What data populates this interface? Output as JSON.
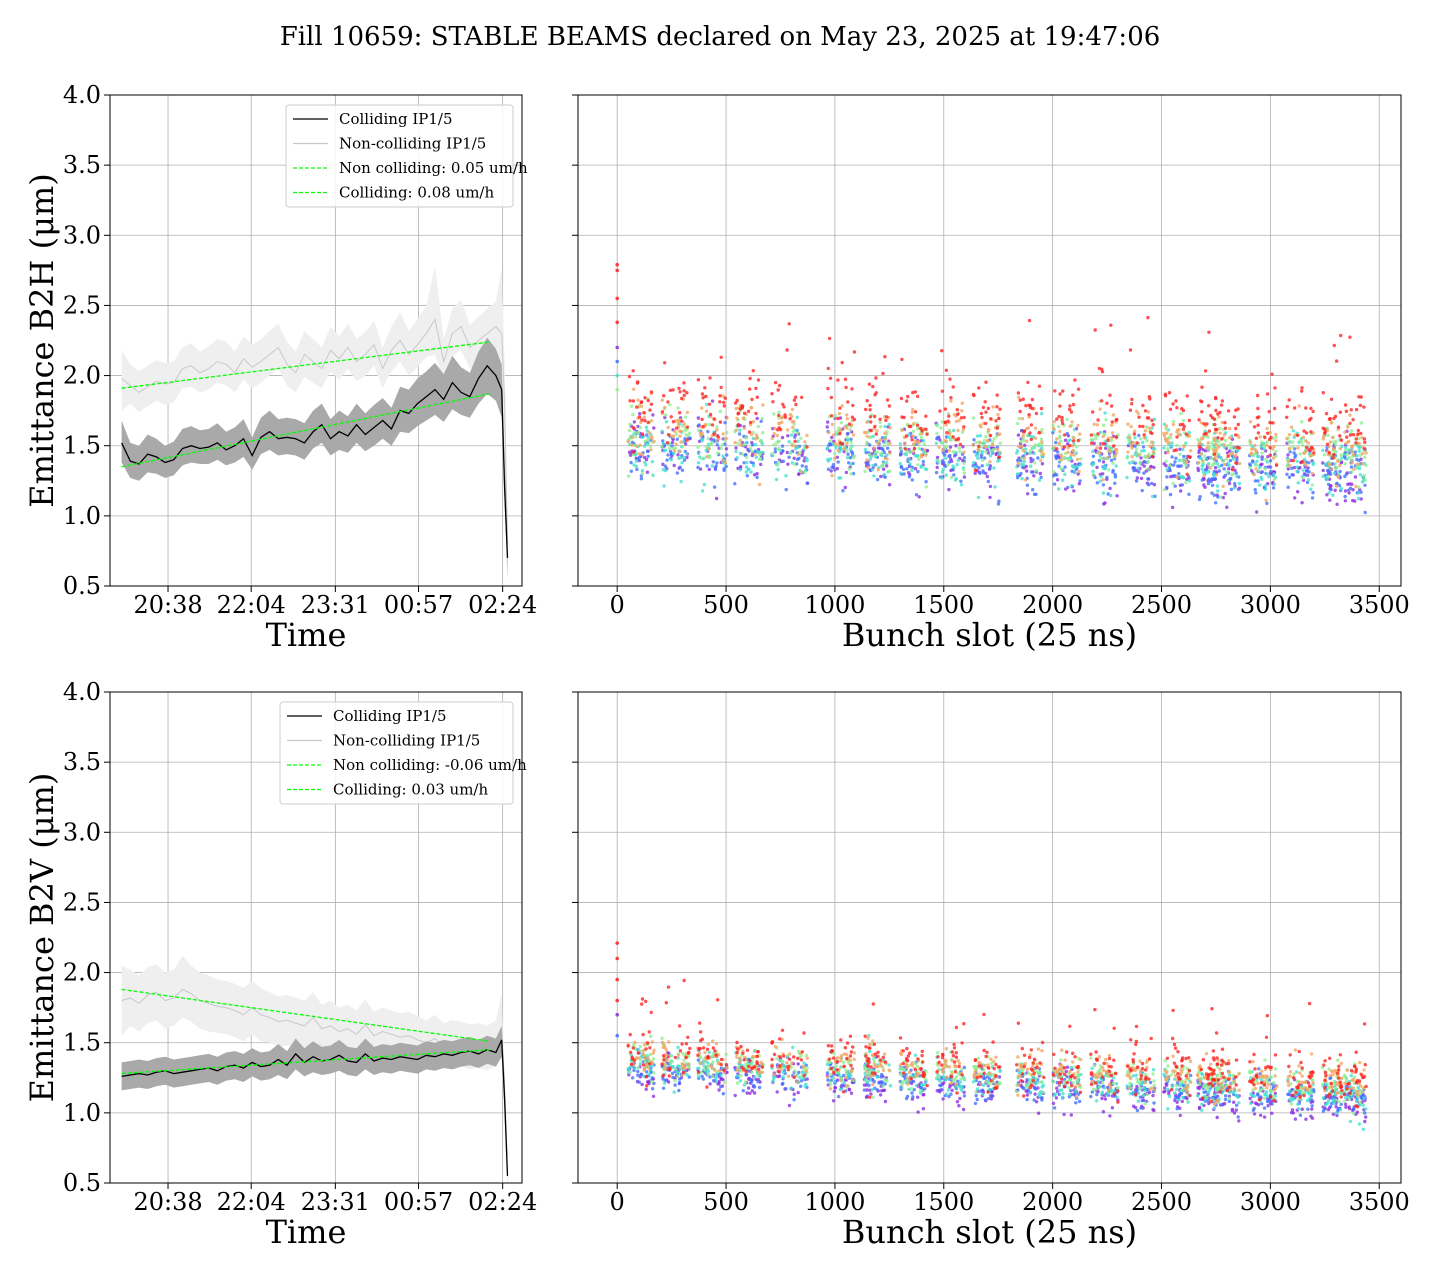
{
  "figure": {
    "title": "Fill 10659: STABLE BEAMS declared on May 23, 2025 at 19:47:06"
  },
  "chart_data": [
    {
      "type": "line",
      "panel": "top-left",
      "xlabel": "Time",
      "ylabel": "Emittance B2H (μm)",
      "ylim": [
        0.5,
        4.0
      ],
      "yticks": [
        "0.5",
        "1.0",
        "1.5",
        "2.0",
        "2.5",
        "3.0",
        "3.5",
        "4.0"
      ],
      "xticks": [
        "20:38",
        "22:04",
        "23:31",
        "00:57",
        "02:24"
      ],
      "grid": true,
      "legend_position": "upper-center",
      "legend": [
        "Colliding IP1/5",
        "Non-colliding IP1/5",
        "Non colliding: 0.05 um/h",
        "Colliding: 0.08 um/h"
      ],
      "colors": {
        "colliding": "#000000",
        "colliding_band": "#a9a9a9",
        "noncolliding": "#c8c8c8",
        "noncolliding_band": "#efefef",
        "fit": "#00ff00"
      },
      "x_hours_from_2038": [
        -0.8,
        -0.65,
        -0.5,
        -0.35,
        -0.2,
        -0.05,
        0.1,
        0.25,
        0.4,
        0.55,
        0.7,
        0.85,
        1.0,
        1.15,
        1.3,
        1.45,
        1.6,
        1.75,
        1.9,
        2.05,
        2.2,
        2.35,
        2.5,
        2.65,
        2.8,
        2.95,
        3.1,
        3.25,
        3.4,
        3.55,
        3.7,
        3.85,
        4.0,
        4.15,
        4.3,
        4.45,
        4.6,
        4.75,
        4.9,
        5.05,
        5.2,
        5.35,
        5.5,
        5.65,
        5.75,
        5.8,
        5.85
      ],
      "series": [
        {
          "name": "Colliding IP1/5",
          "values": [
            1.52,
            1.39,
            1.37,
            1.44,
            1.42,
            1.38,
            1.4,
            1.48,
            1.5,
            1.48,
            1.49,
            1.52,
            1.47,
            1.5,
            1.55,
            1.43,
            1.56,
            1.6,
            1.55,
            1.56,
            1.55,
            1.52,
            1.6,
            1.65,
            1.55,
            1.6,
            1.57,
            1.65,
            1.58,
            1.63,
            1.68,
            1.62,
            1.75,
            1.73,
            1.8,
            1.85,
            1.9,
            1.83,
            1.95,
            1.88,
            1.85,
            1.98,
            2.07,
            2.0,
            1.9,
            1.2,
            0.7
          ],
          "band_low": [
            1.38,
            1.27,
            1.25,
            1.31,
            1.3,
            1.27,
            1.29,
            1.36,
            1.38,
            1.37,
            1.37,
            1.4,
            1.36,
            1.38,
            1.42,
            1.33,
            1.44,
            1.47,
            1.43,
            1.44,
            1.43,
            1.4,
            1.48,
            1.52,
            1.43,
            1.47,
            1.45,
            1.52,
            1.46,
            1.5,
            1.55,
            1.5,
            1.6,
            1.59,
            1.64,
            1.68,
            1.72,
            1.67,
            1.76,
            1.72,
            1.7,
            1.8,
            1.87,
            1.82,
            1.7,
            1.1,
            0.55
          ],
          "band_high": [
            1.68,
            1.52,
            1.5,
            1.58,
            1.55,
            1.5,
            1.53,
            1.62,
            1.64,
            1.61,
            1.62,
            1.66,
            1.6,
            1.63,
            1.69,
            1.56,
            1.7,
            1.75,
            1.69,
            1.7,
            1.69,
            1.66,
            1.75,
            1.8,
            1.69,
            1.75,
            1.71,
            1.8,
            1.73,
            1.79,
            1.84,
            1.77,
            1.92,
            1.9,
            1.98,
            2.03,
            2.09,
            2.01,
            2.14,
            2.06,
            2.02,
            2.17,
            2.27,
            2.19,
            2.08,
            1.4,
            0.9
          ]
        },
        {
          "name": "Non-colliding IP1/5",
          "values": [
            1.98,
            1.93,
            1.88,
            1.92,
            1.96,
            1.94,
            1.95,
            2.05,
            2.07,
            2.02,
            2.05,
            2.1,
            2.08,
            2.02,
            2.12,
            2.06,
            2.1,
            2.15,
            2.2,
            2.08,
            2.02,
            2.15,
            2.1,
            2.05,
            2.18,
            2.12,
            2.2,
            2.1,
            2.15,
            2.22,
            2.05,
            2.18,
            2.25,
            2.15,
            2.22,
            2.3,
            2.4,
            2.1,
            2.3,
            2.35,
            2.2,
            2.25,
            2.3,
            2.35,
            2.3,
            1.8,
            0.8
          ],
          "band_low": [
            1.75,
            1.8,
            1.74,
            1.78,
            1.82,
            1.79,
            1.81,
            1.91,
            1.92,
            1.88,
            1.9,
            1.95,
            1.93,
            1.88,
            1.97,
            1.91,
            1.95,
            2.0,
            2.05,
            1.93,
            1.88,
            1.99,
            1.95,
            1.91,
            2.03,
            1.97,
            2.05,
            1.96,
            2.0,
            2.07,
            1.91,
            2.03,
            2.1,
            2.0,
            2.06,
            2.13,
            2.15,
            1.96,
            2.14,
            2.18,
            2.05,
            2.09,
            2.14,
            2.18,
            2.1,
            1.5,
            0.6
          ],
          "band_high": [
            2.18,
            2.08,
            2.03,
            2.07,
            2.11,
            2.09,
            2.1,
            2.2,
            2.23,
            2.17,
            2.21,
            2.26,
            2.24,
            2.17,
            2.28,
            2.22,
            2.26,
            2.32,
            2.37,
            2.24,
            2.17,
            2.32,
            2.26,
            2.2,
            2.35,
            2.28,
            2.37,
            2.26,
            2.31,
            2.39,
            2.2,
            2.35,
            2.45,
            2.32,
            2.4,
            2.5,
            2.78,
            2.26,
            2.48,
            2.54,
            2.36,
            2.42,
            2.48,
            2.53,
            2.76,
            2.1,
            1.0
          ]
        },
        {
          "name": "Non colliding: 0.05 um/h",
          "fit": true,
          "x": [
            -0.8,
            5.55
          ],
          "values": [
            1.91,
            2.24
          ]
        },
        {
          "name": "Colliding: 0.08 um/h",
          "fit": true,
          "x": [
            -0.8,
            5.55
          ],
          "values": [
            1.35,
            1.87
          ]
        }
      ]
    },
    {
      "type": "scatter",
      "panel": "top-right",
      "xlabel": "Bunch slot (25 ns)",
      "ylim": [
        0.5,
        4.0
      ],
      "xlim": [
        -180,
        3600
      ],
      "xticks": [
        "0",
        "500",
        "1000",
        "1500",
        "2000",
        "2500",
        "3000",
        "3500"
      ],
      "grid": true,
      "color_scale": "rainbow (purple = earliest, red = latest)",
      "bunch_trains": [
        [
          50,
          170
        ],
        [
          205,
          335
        ],
        [
          370,
          505
        ],
        [
          540,
          670
        ],
        [
          710,
          875
        ],
        [
          965,
          1090
        ],
        [
          1135,
          1255
        ],
        [
          1300,
          1425
        ],
        [
          1465,
          1595
        ],
        [
          1635,
          1760
        ],
        [
          1835,
          1960
        ],
        [
          2000,
          2130
        ],
        [
          2175,
          2300
        ],
        [
          2340,
          2470
        ],
        [
          2510,
          2635
        ],
        [
          2665,
          2760
        ],
        [
          2735,
          2860
        ],
        [
          2905,
          3030
        ],
        [
          3075,
          3200
        ],
        [
          3240,
          3330
        ],
        [
          3340,
          3440
        ]
      ],
      "colour_levels": [
        {
          "name": "purple",
          "value_start": 1.55,
          "value_end": 1.3,
          "color": "#8a2be2"
        },
        {
          "name": "blue",
          "value_start": 1.5,
          "value_end": 1.3,
          "color": "#3f6fff"
        },
        {
          "name": "cyan",
          "value_start": 1.5,
          "value_end": 1.4,
          "color": "#40e0d0"
        },
        {
          "name": "green",
          "value_start": 1.6,
          "value_end": 1.45,
          "color": "#90ee90"
        },
        {
          "name": "orange",
          "value_start": 1.65,
          "value_end": 1.5,
          "color": "#f4a460"
        },
        {
          "name": "red",
          "value_start": 1.8,
          "value_end": 1.65,
          "color": "#ff2020"
        }
      ],
      "first_slot_values": [
        2.79,
        2.75,
        2.55,
        2.38,
        2.2,
        2.1,
        2.0,
        1.9
      ]
    },
    {
      "type": "line",
      "panel": "bottom-left",
      "xlabel": "Time",
      "ylabel": "Emittance B2V (μm)",
      "ylim": [
        0.5,
        4.0
      ],
      "yticks": [
        "0.5",
        "1.0",
        "1.5",
        "2.0",
        "2.5",
        "3.0",
        "3.5",
        "4.0"
      ],
      "xticks": [
        "20:38",
        "22:04",
        "23:31",
        "00:57",
        "02:24"
      ],
      "grid": true,
      "legend_position": "upper-center",
      "legend": [
        "Colliding IP1/5",
        "Non-colliding IP1/5",
        "Non colliding: -0.06 um/h",
        "Colliding: 0.03 um/h"
      ],
      "colors": {
        "colliding": "#000000",
        "colliding_band": "#a9a9a9",
        "noncolliding": "#c8c8c8",
        "noncolliding_band": "#efefef",
        "fit": "#00ff00"
      },
      "x_hours_from_2038": [
        -0.8,
        -0.65,
        -0.5,
        -0.35,
        -0.2,
        -0.05,
        0.1,
        0.25,
        0.4,
        0.55,
        0.7,
        0.85,
        1.0,
        1.15,
        1.3,
        1.45,
        1.6,
        1.75,
        1.9,
        2.05,
        2.2,
        2.35,
        2.5,
        2.65,
        2.8,
        2.95,
        3.1,
        3.25,
        3.4,
        3.55,
        3.7,
        3.85,
        4.0,
        4.15,
        4.3,
        4.45,
        4.6,
        4.75,
        4.9,
        5.05,
        5.2,
        5.35,
        5.5,
        5.65,
        5.75,
        5.8,
        5.85
      ],
      "series": [
        {
          "name": "Colliding IP1/5",
          "values": [
            1.26,
            1.27,
            1.28,
            1.27,
            1.29,
            1.3,
            1.28,
            1.29,
            1.3,
            1.31,
            1.32,
            1.3,
            1.33,
            1.34,
            1.32,
            1.36,
            1.33,
            1.34,
            1.38,
            1.34,
            1.42,
            1.36,
            1.4,
            1.37,
            1.38,
            1.41,
            1.37,
            1.36,
            1.42,
            1.37,
            1.39,
            1.38,
            1.4,
            1.39,
            1.38,
            1.41,
            1.4,
            1.42,
            1.41,
            1.43,
            1.44,
            1.42,
            1.45,
            1.43,
            1.52,
            1.1,
            0.55
          ],
          "band_low": [
            1.16,
            1.17,
            1.18,
            1.17,
            1.19,
            1.2,
            1.18,
            1.19,
            1.2,
            1.21,
            1.22,
            1.2,
            1.23,
            1.24,
            1.22,
            1.26,
            1.23,
            1.24,
            1.27,
            1.24,
            1.31,
            1.26,
            1.29,
            1.27,
            1.28,
            1.3,
            1.27,
            1.26,
            1.31,
            1.27,
            1.29,
            1.28,
            1.3,
            1.29,
            1.28,
            1.31,
            1.3,
            1.32,
            1.31,
            1.33,
            1.34,
            1.32,
            1.35,
            1.33,
            1.4,
            1.0,
            0.5
          ],
          "band_high": [
            1.36,
            1.37,
            1.38,
            1.37,
            1.39,
            1.4,
            1.38,
            1.39,
            1.4,
            1.41,
            1.42,
            1.4,
            1.43,
            1.44,
            1.42,
            1.46,
            1.43,
            1.44,
            1.49,
            1.44,
            1.53,
            1.46,
            1.51,
            1.47,
            1.48,
            1.52,
            1.47,
            1.46,
            1.53,
            1.47,
            1.49,
            1.48,
            1.5,
            1.49,
            1.48,
            1.51,
            1.5,
            1.52,
            1.51,
            1.53,
            1.54,
            1.52,
            1.55,
            1.53,
            1.62,
            1.25,
            0.7
          ]
        },
        {
          "name": "Non-colliding IP1/5",
          "values": [
            1.8,
            1.82,
            1.78,
            1.84,
            1.86,
            1.8,
            1.82,
            1.88,
            1.85,
            1.8,
            1.78,
            1.76,
            1.75,
            1.73,
            1.7,
            1.75,
            1.7,
            1.68,
            1.65,
            1.66,
            1.64,
            1.62,
            1.68,
            1.6,
            1.62,
            1.58,
            1.6,
            1.56,
            1.63,
            1.55,
            1.58,
            1.56,
            1.54,
            1.55,
            1.52,
            1.5,
            1.53,
            1.48,
            1.5,
            1.49,
            1.47,
            1.48,
            1.46,
            1.5,
            1.6,
            1.1,
            0.55
          ],
          "band_low": [
            1.55,
            1.62,
            1.58,
            1.64,
            1.66,
            1.6,
            1.62,
            1.68,
            1.65,
            1.6,
            1.58,
            1.57,
            1.56,
            1.54,
            1.51,
            1.56,
            1.51,
            1.5,
            1.47,
            1.48,
            1.46,
            1.44,
            1.5,
            1.43,
            1.44,
            1.41,
            1.43,
            1.39,
            1.45,
            1.38,
            1.41,
            1.39,
            1.37,
            1.38,
            1.35,
            1.34,
            1.36,
            1.32,
            1.34,
            1.33,
            1.31,
            1.32,
            1.3,
            1.34,
            1.4,
            0.95,
            0.5
          ],
          "band_high": [
            2.05,
            2.02,
            1.98,
            2.04,
            2.06,
            2.0,
            2.02,
            2.12,
            2.05,
            2.0,
            1.98,
            1.95,
            1.94,
            1.92,
            1.89,
            1.94,
            1.89,
            1.86,
            1.83,
            1.84,
            1.82,
            1.8,
            1.86,
            1.77,
            1.8,
            1.75,
            1.77,
            1.73,
            1.81,
            1.72,
            1.75,
            1.73,
            1.71,
            1.72,
            1.69,
            1.66,
            1.7,
            1.64,
            1.66,
            1.65,
            1.63,
            1.64,
            1.62,
            1.66,
            1.85,
            1.25,
            0.65
          ]
        },
        {
          "name": "Non colliding: -0.06 um/h",
          "fit": true,
          "x": [
            -0.8,
            5.55
          ],
          "values": [
            1.88,
            1.51
          ]
        },
        {
          "name": "Colliding: 0.03 um/h",
          "fit": true,
          "x": [
            -0.8,
            5.55
          ],
          "values": [
            1.28,
            1.45
          ]
        }
      ]
    },
    {
      "type": "scatter",
      "panel": "bottom-right",
      "xlabel": "Bunch slot (25 ns)",
      "ylim": [
        0.5,
        4.0
      ],
      "xlim": [
        -180,
        3600
      ],
      "xticks": [
        "0",
        "500",
        "1000",
        "1500",
        "2000",
        "2500",
        "3000",
        "3500"
      ],
      "grid": true,
      "color_scale": "rainbow (purple = earliest, red = latest)",
      "bunch_trains": [
        [
          50,
          170
        ],
        [
          205,
          335
        ],
        [
          370,
          505
        ],
        [
          540,
          670
        ],
        [
          710,
          875
        ],
        [
          965,
          1090
        ],
        [
          1135,
          1255
        ],
        [
          1300,
          1425
        ],
        [
          1465,
          1595
        ],
        [
          1635,
          1760
        ],
        [
          1835,
          1960
        ],
        [
          2000,
          2130
        ],
        [
          2175,
          2300
        ],
        [
          2340,
          2470
        ],
        [
          2510,
          2635
        ],
        [
          2665,
          2760
        ],
        [
          2735,
          2860
        ],
        [
          2905,
          3030
        ],
        [
          3075,
          3200
        ],
        [
          3240,
          3330
        ],
        [
          3340,
          3440
        ]
      ],
      "colour_levels": [
        {
          "name": "purple",
          "value_start": 1.3,
          "value_end": 1.08,
          "color": "#8a2be2"
        },
        {
          "name": "blue",
          "value_start": 1.33,
          "value_end": 1.12,
          "color": "#3f6fff"
        },
        {
          "name": "cyan",
          "value_start": 1.36,
          "value_end": 1.15,
          "color": "#40e0d0"
        },
        {
          "name": "green",
          "value_start": 1.4,
          "value_end": 1.2,
          "color": "#90ee90"
        },
        {
          "name": "orange",
          "value_start": 1.42,
          "value_end": 1.24,
          "color": "#f4a460"
        },
        {
          "name": "red",
          "value_start": 1.45,
          "value_end": 1.27,
          "color": "#ff2020"
        }
      ],
      "first_slot_values": [
        2.21,
        2.1,
        1.95,
        1.8,
        1.7,
        1.55
      ]
    }
  ]
}
